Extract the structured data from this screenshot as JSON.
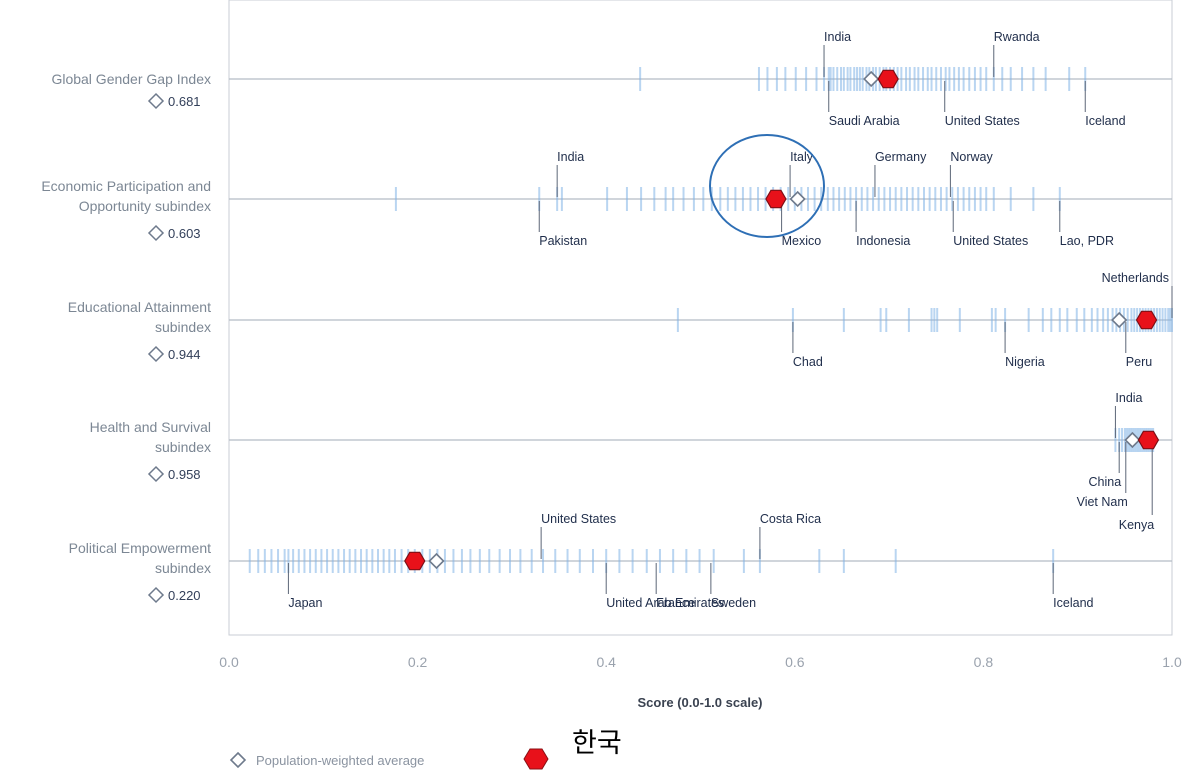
{
  "chart_data": {
    "type": "scatter",
    "xlabel": "Score (0.0-1.0 scale)",
    "xlim": [
      0.0,
      1.0
    ],
    "xticks": [
      0.0,
      0.2,
      0.4,
      0.6,
      0.8,
      1.0
    ],
    "xtick_labels": [
      "0.0",
      "0.2",
      "0.4",
      "0.6",
      "0.8",
      "1.0"
    ],
    "grid": false,
    "colors": {
      "strip": "#7fb2e5",
      "line": "#b5bcc5",
      "frame": "#c9ced5",
      "korea": "#e8111a",
      "avg": "#6e7a8c",
      "annot": "#1f2d4a",
      "circle": "#2e6fb5"
    },
    "legend": [
      {
        "id": "avg",
        "marker": "diamond",
        "label": "Population-weighted average"
      },
      {
        "id": "korea",
        "marker": "hexagon",
        "label": "한국"
      }
    ],
    "rows": [
      {
        "label_lines": [
          "Global Gender Gap Index"
        ],
        "average": 0.681,
        "average_label": "0.681",
        "korea": 0.699,
        "countries": [
          0.436,
          0.562,
          0.571,
          0.581,
          0.59,
          0.601,
          0.612,
          0.623,
          0.631,
          0.636,
          0.638,
          0.641,
          0.645,
          0.649,
          0.652,
          0.656,
          0.659,
          0.663,
          0.666,
          0.669,
          0.672,
          0.676,
          0.679,
          0.683,
          0.686,
          0.69,
          0.694,
          0.697,
          0.701,
          0.705,
          0.709,
          0.713,
          0.718,
          0.722,
          0.727,
          0.731,
          0.736,
          0.741,
          0.745,
          0.75,
          0.755,
          0.76,
          0.764,
          0.769,
          0.774,
          0.779,
          0.785,
          0.791,
          0.797,
          0.803,
          0.811,
          0.82,
          0.829,
          0.841,
          0.853,
          0.866,
          0.891,
          0.908
        ],
        "annotations": [
          {
            "text": "India",
            "value": 0.631,
            "pos": "above"
          },
          {
            "text": "Rwanda",
            "value": 0.811,
            "pos": "above"
          },
          {
            "text": "Saudi Arabia",
            "value": 0.636,
            "pos": "below"
          },
          {
            "text": "United States",
            "value": 0.759,
            "pos": "below"
          },
          {
            "text": "Iceland",
            "value": 0.908,
            "pos": "below"
          }
        ]
      },
      {
        "label_lines": [
          "Economic Participation and",
          "Opportunity subindex"
        ],
        "average": 0.603,
        "average_label": "0.603",
        "korea": 0.58,
        "countries": [
          0.177,
          0.329,
          0.348,
          0.353,
          0.401,
          0.422,
          0.437,
          0.451,
          0.463,
          0.471,
          0.482,
          0.493,
          0.503,
          0.512,
          0.521,
          0.529,
          0.537,
          0.545,
          0.553,
          0.561,
          0.569,
          0.577,
          0.585,
          0.593,
          0.6,
          0.607,
          0.614,
          0.621,
          0.628,
          0.635,
          0.641,
          0.647,
          0.653,
          0.659,
          0.665,
          0.671,
          0.677,
          0.683,
          0.689,
          0.695,
          0.701,
          0.707,
          0.713,
          0.719,
          0.725,
          0.731,
          0.737,
          0.743,
          0.749,
          0.755,
          0.761,
          0.767,
          0.773,
          0.779,
          0.785,
          0.791,
          0.797,
          0.803,
          0.811,
          0.829,
          0.853,
          0.881
        ],
        "annotations": [
          {
            "text": "India",
            "value": 0.348,
            "pos": "above"
          },
          {
            "text": "Italy",
            "value": 0.595,
            "pos": "above"
          },
          {
            "text": "Germany",
            "value": 0.685,
            "pos": "above"
          },
          {
            "text": "Norway",
            "value": 0.765,
            "pos": "above"
          },
          {
            "text": "Pakistan",
            "value": 0.329,
            "pos": "below"
          },
          {
            "text": "Mexico",
            "value": 0.586,
            "pos": "below"
          },
          {
            "text": "Indonesia",
            "value": 0.665,
            "pos": "below"
          },
          {
            "text": "United States",
            "value": 0.768,
            "pos": "below"
          },
          {
            "text": "Lao, PDR",
            "value": 0.881,
            "pos": "below"
          }
        ]
      },
      {
        "label_lines": [
          "Educational Attainment",
          "subindex"
        ],
        "average": 0.944,
        "average_label": "0.944",
        "korea": 0.973,
        "countries": [
          0.476,
          0.598,
          0.652,
          0.691,
          0.697,
          0.721,
          0.745,
          0.748,
          0.751,
          0.775,
          0.809,
          0.813,
          0.823,
          0.848,
          0.863,
          0.872,
          0.881,
          0.889,
          0.899,
          0.907,
          0.915,
          0.921,
          0.927,
          0.932,
          0.937,
          0.941,
          0.945,
          0.949,
          0.953,
          0.957,
          0.96,
          0.963,
          0.966,
          0.969,
          0.972,
          0.975,
          0.978,
          0.981,
          0.984,
          0.987,
          0.99,
          0.993,
          0.996,
          0.998,
          1.0
        ],
        "annotations": [
          {
            "text": "Netherlands",
            "value": 1.0,
            "pos": "above"
          },
          {
            "text": "Chad",
            "value": 0.598,
            "pos": "below"
          },
          {
            "text": "Nigeria",
            "value": 0.823,
            "pos": "below"
          },
          {
            "text": "Peru",
            "value": 0.951,
            "pos": "below"
          }
        ]
      },
      {
        "label_lines": [
          "Health and Survival",
          "subindex"
        ],
        "average": 0.958,
        "average_label": "0.958",
        "korea": 0.975,
        "countries": [
          0.94,
          0.944,
          0.947,
          0.95,
          0.952,
          0.954,
          0.956,
          0.958,
          0.96,
          0.962,
          0.964,
          0.966,
          0.968,
          0.97,
          0.972,
          0.974,
          0.976,
          0.978,
          0.98
        ],
        "annotations": [
          {
            "text": "India",
            "value": 0.94,
            "pos": "above"
          },
          {
            "text": "China",
            "value": 0.944,
            "pos": "below"
          },
          {
            "text": "Viet Nam",
            "value": 0.951,
            "pos": "below2"
          },
          {
            "text": "Kenya",
            "value": 0.979,
            "pos": "below3"
          }
        ]
      },
      {
        "label_lines": [
          "Political Empowerment",
          "subindex"
        ],
        "average": 0.22,
        "average_label": "0.220",
        "korea": 0.197,
        "countries": [
          0.022,
          0.031,
          0.038,
          0.045,
          0.052,
          0.059,
          0.063,
          0.068,
          0.074,
          0.08,
          0.086,
          0.092,
          0.098,
          0.104,
          0.11,
          0.116,
          0.122,
          0.128,
          0.134,
          0.14,
          0.146,
          0.152,
          0.158,
          0.164,
          0.17,
          0.176,
          0.183,
          0.19,
          0.197,
          0.205,
          0.213,
          0.221,
          0.229,
          0.238,
          0.247,
          0.256,
          0.266,
          0.276,
          0.287,
          0.298,
          0.309,
          0.321,
          0.333,
          0.346,
          0.359,
          0.372,
          0.386,
          0.4,
          0.414,
          0.428,
          0.443,
          0.457,
          0.471,
          0.485,
          0.499,
          0.514,
          0.546,
          0.563,
          0.626,
          0.652,
          0.707,
          0.874
        ],
        "annotations": [
          {
            "text": "United States",
            "value": 0.331,
            "pos": "above"
          },
          {
            "text": "Costa Rica",
            "value": 0.563,
            "pos": "above"
          },
          {
            "text": "Japan",
            "value": 0.063,
            "pos": "below"
          },
          {
            "text": "United Arab Emirates",
            "value": 0.4,
            "pos": "below"
          },
          {
            "text": "France",
            "value": 0.453,
            "pos": "below"
          },
          {
            "text": "Sweden",
            "value": 0.511,
            "pos": "below"
          },
          {
            "text": "Iceland",
            "value": 0.874,
            "pos": "below"
          }
        ]
      }
    ]
  }
}
